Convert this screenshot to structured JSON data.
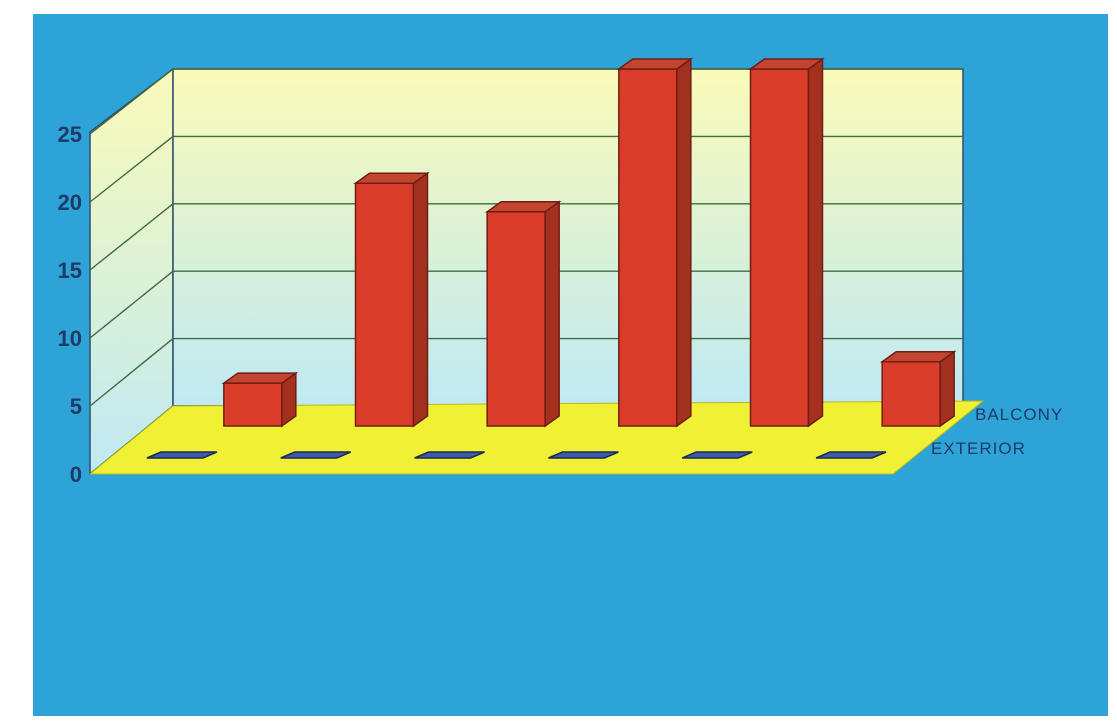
{
  "colors": {
    "background": "#2ea3d8",
    "wall_top": "#fafab8",
    "wall_bottom": "#bfe9f4",
    "floor": "#f0f035",
    "series_front": "#d93d2a",
    "series_side": "#a4301f",
    "series_top": "#c4452f",
    "series_back": "#3f5aa6",
    "gridline": "#3f6b3f"
  },
  "chart_data": {
    "type": "bar",
    "subtype": "3d-clustered-bar",
    "title": "",
    "xlabel": "",
    "ylabel": "",
    "ylim": [
      0,
      25
    ],
    "yticks": [
      "0",
      "5",
      "10",
      "15",
      "20",
      "25"
    ],
    "grid": true,
    "legend_position": "right",
    "categories": [
      "",
      "",
      "",
      "",
      "",
      ""
    ],
    "series": [
      {
        "name": "BALCONY",
        "values": [
          3,
          17,
          15,
          25,
          25,
          4.5
        ]
      },
      {
        "name": "EXTERIOR",
        "values": [
          0.3,
          0.3,
          0.3,
          0.3,
          0.3,
          0.3
        ]
      }
    ]
  }
}
